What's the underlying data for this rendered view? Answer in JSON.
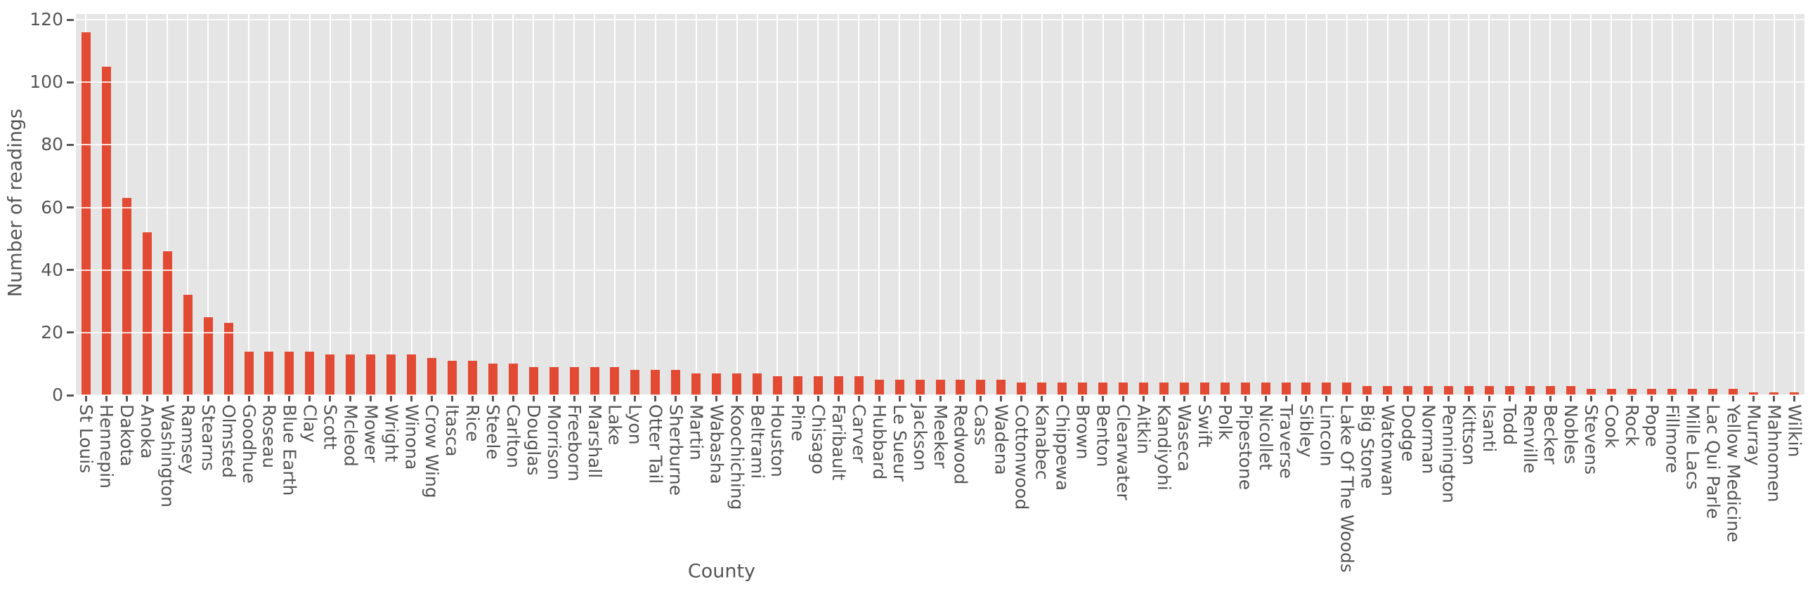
{
  "chart_data": {
    "type": "bar",
    "title": "",
    "xlabel": "County",
    "ylabel": "Number of readings",
    "categories": [
      "St Louis",
      "Hennepin",
      "Dakota",
      "Anoka",
      "Washington",
      "Ramsey",
      "Stearns",
      "Olmsted",
      "Goodhue",
      "Roseau",
      "Blue Earth",
      "Clay",
      "Scott",
      "Mcleod",
      "Mower",
      "Wright",
      "Winona",
      "Crow Wing",
      "Itasca",
      "Rice",
      "Steele",
      "Carlton",
      "Douglas",
      "Morrison",
      "Freeborn",
      "Marshall",
      "Lake",
      "Lyon",
      "Otter Tail",
      "Sherburne",
      "Martin",
      "Wabasha",
      "Koochiching",
      "Beltrami",
      "Houston",
      "Pine",
      "Chisago",
      "Faribault",
      "Carver",
      "Hubbard",
      "Le Sueur",
      "Jackson",
      "Meeker",
      "Redwood",
      "Cass",
      "Wadena",
      "Cottonwood",
      "Kanabec",
      "Chippewa",
      "Brown",
      "Benton",
      "Clearwater",
      "Aitkin",
      "Kandiyohi",
      "Waseca",
      "Swift",
      "Polk",
      "Pipestone",
      "Nicollet",
      "Traverse",
      "Sibley",
      "Lincoln",
      "Lake Of The Woods",
      "Big Stone",
      "Watonwan",
      "Dodge",
      "Norman",
      "Pennington",
      "Kittson",
      "Isanti",
      "Todd",
      "Renville",
      "Becker",
      "Nobles",
      "Stevens",
      "Cook",
      "Rock",
      "Pope",
      "Fillmore",
      "Mille Lacs",
      "Lac Qui Parle",
      "Yellow Medicine",
      "Murray",
      "Mahnomen",
      "Wilkin"
    ],
    "values": [
      116,
      105,
      63,
      52,
      46,
      32,
      25,
      23,
      14,
      14,
      14,
      14,
      13,
      13,
      13,
      13,
      13,
      12,
      11,
      11,
      10,
      10,
      9,
      9,
      9,
      9,
      9,
      8,
      8,
      8,
      7,
      7,
      7,
      7,
      6,
      6,
      6,
      6,
      6,
      5,
      5,
      5,
      5,
      5,
      5,
      5,
      4,
      4,
      4,
      4,
      4,
      4,
      4,
      4,
      4,
      4,
      4,
      4,
      4,
      4,
      4,
      4,
      4,
      3,
      3,
      3,
      3,
      3,
      3,
      3,
      3,
      3,
      3,
      3,
      2,
      2,
      2,
      2,
      2,
      2,
      2,
      2,
      1,
      1,
      1
    ],
    "yticks": [
      0,
      20,
      40,
      60,
      80,
      100,
      120
    ],
    "ylim": [
      0,
      121.8
    ],
    "grid": true,
    "legend": "none",
    "bar_color": "#E24A33",
    "plot_bg": "#E5E5E5",
    "grid_color": "#FFFFFF",
    "text_color": "#555555",
    "tick_color": "#555555"
  }
}
